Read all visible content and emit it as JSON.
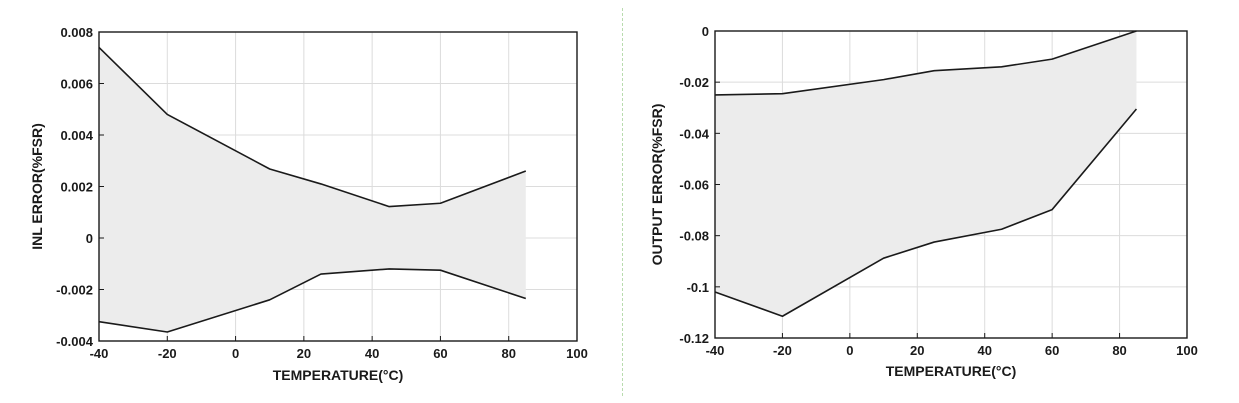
{
  "chart_data": [
    {
      "type": "area",
      "title": "",
      "xlabel": "TEMPERATURE(°C)",
      "ylabel": "INL ERROR(%FSR)",
      "xlim": [
        -40,
        100
      ],
      "ylim": [
        -0.004,
        0.008
      ],
      "xticks": [
        -40,
        -20,
        0,
        20,
        40,
        60,
        80,
        100
      ],
      "xtick_labels": [
        "-40",
        "-20",
        "0",
        "20",
        "40",
        "60",
        "80",
        "100"
      ],
      "yticks": [
        -0.004,
        -0.002,
        0,
        0.002,
        0.004,
        0.006,
        0.008
      ],
      "ytick_labels": [
        "-0.004",
        "-0.002",
        "0",
        "0.002",
        "0.004",
        "0.006",
        "0.008"
      ],
      "grid": true,
      "x": [
        -40,
        -20,
        10,
        25,
        45,
        60,
        85
      ],
      "series": [
        {
          "values": [
            0.0074,
            0.0048,
            0.00268,
            0.0021,
            0.00122,
            0.00135,
            0.0026
          ]
        },
        {
          "values": [
            -0.00325,
            -0.00365,
            -0.0024,
            -0.0014,
            -0.0012,
            -0.00125,
            -0.00235
          ]
        }
      ],
      "fill_color": "#ececec",
      "line_color": "#1a1a1a"
    },
    {
      "type": "area",
      "title": "",
      "xlabel": "TEMPERATURE(°C)",
      "ylabel": "OUTPUT ERROR(%FSR)",
      "xlim": [
        -40,
        100
      ],
      "ylim": [
        -0.12,
        0
      ],
      "xticks": [
        -40,
        -20,
        0,
        20,
        40,
        60,
        80,
        100
      ],
      "xtick_labels": [
        "-40",
        "-20",
        "0",
        "20",
        "40",
        "60",
        "80",
        "100"
      ],
      "yticks": [
        -0.12,
        -0.1,
        -0.08,
        -0.06,
        -0.04,
        -0.02,
        0
      ],
      "ytick_labels": [
        "-0.12",
        "-0.1",
        "-0.08",
        "-0.06",
        "-0.04",
        "-0.02",
        "0"
      ],
      "grid": true,
      "x": [
        -40,
        -20,
        10,
        25,
        45,
        60,
        85
      ],
      "series": [
        {
          "values": [
            -0.025,
            -0.0245,
            -0.019,
            -0.0155,
            -0.014,
            -0.011,
            0
          ]
        },
        {
          "values": [
            -0.102,
            -0.1115,
            -0.0888,
            -0.0825,
            -0.0775,
            -0.0698,
            -0.0305
          ]
        }
      ],
      "fill_color": "#ececec",
      "line_color": "#1a1a1a"
    }
  ]
}
